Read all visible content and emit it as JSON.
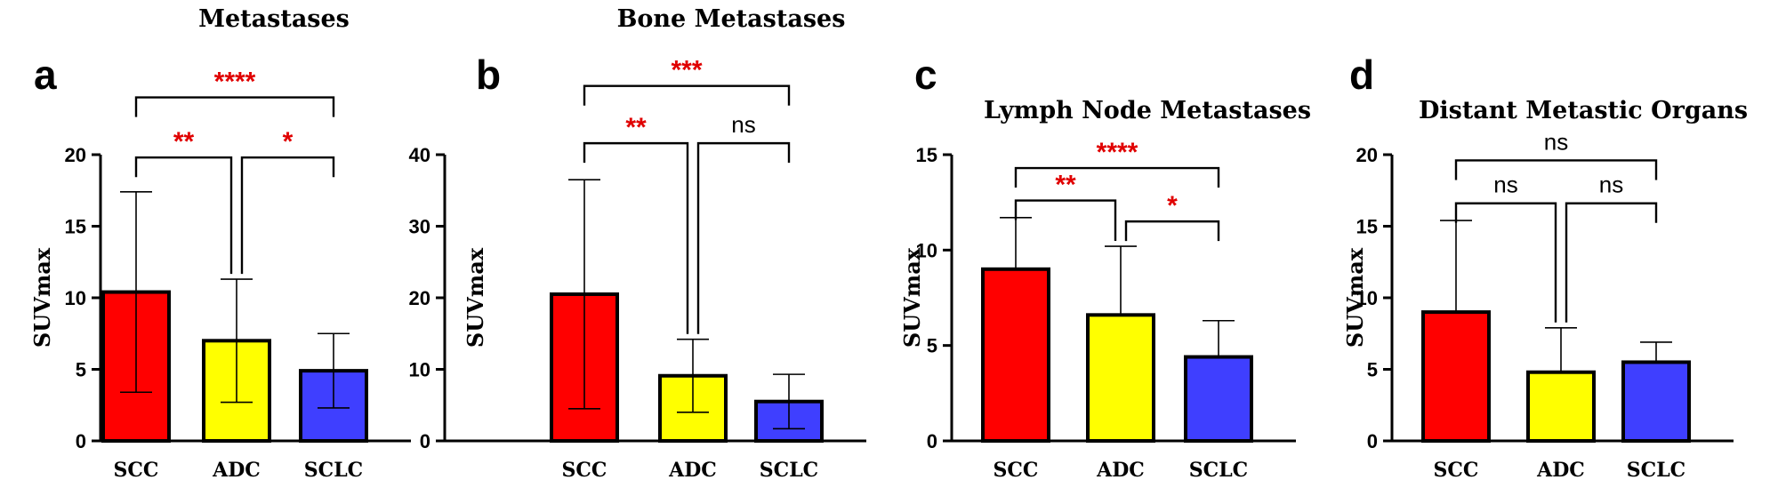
{
  "colors": {
    "SCC": "#ff0000",
    "ADC": "#ffff00",
    "SCLC": "#3f3fff",
    "significant": "#e00000",
    "ns": "#000000"
  },
  "chart_data": [
    {
      "type": "bar",
      "panel_letter": "a",
      "title": "Metastases",
      "ylabel": "SUVmax",
      "ylim": [
        0,
        20
      ],
      "yticks": [
        0,
        5,
        10,
        15,
        20
      ],
      "categories": [
        "SCC",
        "ADC",
        "SCLC"
      ],
      "values": [
        10.4,
        7.0,
        4.9
      ],
      "error": [
        7.0,
        4.3,
        2.6
      ],
      "show_lower_error": true,
      "comparisons": [
        {
          "from": 0,
          "to": 1,
          "label": "**",
          "y": 19.8
        },
        {
          "from": 1,
          "to": 2,
          "label": "*",
          "y": 19.8
        },
        {
          "from": 0,
          "to": 2,
          "label": "****",
          "y": 24.0
        }
      ]
    },
    {
      "type": "bar",
      "panel_letter": "b",
      "title": "Bone Metastases",
      "ylabel": "SUVmax",
      "ylim": [
        0,
        40
      ],
      "yticks": [
        0,
        10,
        20,
        30,
        40
      ],
      "categories": [
        "SCC",
        "ADC",
        "SCLC"
      ],
      "values": [
        20.5,
        9.1,
        5.5
      ],
      "error": [
        16.0,
        5.1,
        3.8
      ],
      "show_lower_error": true,
      "comparisons": [
        {
          "from": 0,
          "to": 1,
          "label": "**",
          "y": 41.6
        },
        {
          "from": 1,
          "to": 2,
          "label": "ns",
          "y": 41.6
        },
        {
          "from": 0,
          "to": 2,
          "label": "***",
          "y": 49.6
        }
      ]
    },
    {
      "type": "bar",
      "panel_letter": "c",
      "title": "Lymph Node Metastases",
      "ylabel": "SUVmax",
      "ylim": [
        0,
        15
      ],
      "yticks": [
        0,
        5,
        10,
        15
      ],
      "categories": [
        "SCC",
        "ADC",
        "SCLC"
      ],
      "values": [
        9.0,
        6.6,
        4.4
      ],
      "error": [
        2.7,
        3.6,
        1.9
      ],
      "show_lower_error": false,
      "comparisons": [
        {
          "from": 0,
          "to": 1,
          "label": "**",
          "y": 12.6
        },
        {
          "from": 1,
          "to": 2,
          "label": "*",
          "y": 11.5
        },
        {
          "from": 0,
          "to": 2,
          "label": "****",
          "y": 14.3
        }
      ]
    },
    {
      "type": "bar",
      "panel_letter": "d",
      "title": "Distant Metastic Organs",
      "ylabel": "SUVmax",
      "ylim": [
        0,
        20
      ],
      "yticks": [
        0,
        5,
        10,
        15,
        20
      ],
      "categories": [
        "SCC",
        "ADC",
        "SCLC"
      ],
      "values": [
        9.0,
        4.8,
        5.5
      ],
      "error": [
        6.4,
        3.1,
        1.4
      ],
      "show_lower_error": false,
      "comparisons": [
        {
          "from": 0,
          "to": 1,
          "label": "ns",
          "y": 16.6
        },
        {
          "from": 1,
          "to": 2,
          "label": "ns",
          "y": 16.6
        },
        {
          "from": 0,
          "to": 2,
          "label": "ns",
          "y": 19.6
        }
      ]
    }
  ]
}
